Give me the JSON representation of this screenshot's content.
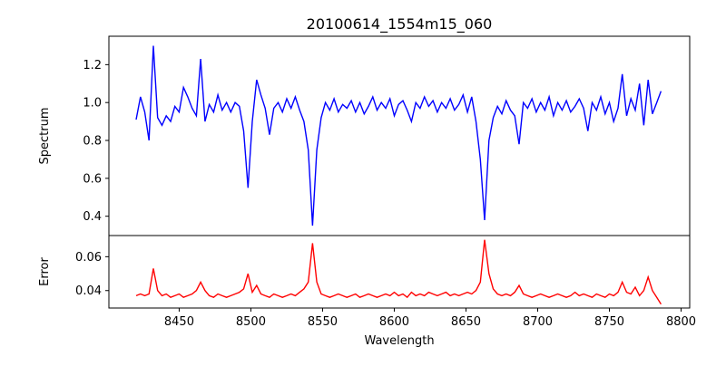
{
  "chart_data": [
    {
      "type": "line",
      "title": "20100614_1554m15_060",
      "xlabel": "",
      "ylabel": "Spectrum",
      "xlim": [
        8401,
        8806
      ],
      "ylim": [
        0.298,
        1.35
      ],
      "x_start": 8420,
      "x_step": 3,
      "color": "#0000ff",
      "yticks": [
        0.4,
        0.6,
        0.8,
        1.0,
        1.2
      ],
      "ytick_labels": [
        "0.4",
        "0.6",
        "0.8",
        "1.0",
        "1.2"
      ],
      "values": [
        0.91,
        1.03,
        0.95,
        0.8,
        1.3,
        0.92,
        0.88,
        0.93,
        0.9,
        0.98,
        0.95,
        1.08,
        1.03,
        0.97,
        0.93,
        1.23,
        0.9,
        0.99,
        0.95,
        1.04,
        0.96,
        1.0,
        0.95,
        1.0,
        0.98,
        0.85,
        0.55,
        0.9,
        1.12,
        1.04,
        0.97,
        0.83,
        0.97,
        1.0,
        0.95,
        1.02,
        0.97,
        1.03,
        0.96,
        0.9,
        0.75,
        0.35,
        0.75,
        0.92,
        1.0,
        0.96,
        1.02,
        0.95,
        0.99,
        0.97,
        1.01,
        0.95,
        1.0,
        0.94,
        0.98,
        1.03,
        0.96,
        1.0,
        0.97,
        1.02,
        0.93,
        0.99,
        1.01,
        0.96,
        0.9,
        1.0,
        0.97,
        1.03,
        0.98,
        1.01,
        0.95,
        1.0,
        0.97,
        1.02,
        0.96,
        0.99,
        1.04,
        0.95,
        1.03,
        0.9,
        0.7,
        0.38,
        0.8,
        0.92,
        0.98,
        0.94,
        1.01,
        0.96,
        0.93,
        0.78,
        1.0,
        0.97,
        1.02,
        0.95,
        1.0,
        0.96,
        1.03,
        0.93,
        1.0,
        0.96,
        1.01,
        0.95,
        0.98,
        1.02,
        0.97,
        0.85,
        1.0,
        0.96,
        1.03,
        0.94,
        1.0,
        0.9,
        0.97,
        1.15,
        0.93,
        1.02,
        0.96,
        1.1,
        0.88,
        1.12,
        0.94,
        1.0,
        1.06
      ]
    },
    {
      "type": "line",
      "title": "",
      "xlabel": "Wavelength",
      "ylabel": "Error",
      "xlim": [
        8401,
        8806
      ],
      "ylim": [
        0.0297,
        0.0725
      ],
      "x_start": 8420,
      "x_step": 3,
      "color": "#ff0000",
      "xticks": [
        8450,
        8500,
        8550,
        8600,
        8650,
        8700,
        8750,
        8800
      ],
      "xtick_labels": [
        "8450",
        "8500",
        "8550",
        "8600",
        "8650",
        "8700",
        "8750",
        "8800"
      ],
      "yticks": [
        0.04,
        0.06
      ],
      "ytick_labels": [
        "0.04",
        "0.06"
      ],
      "values": [
        0.037,
        0.038,
        0.037,
        0.038,
        0.053,
        0.04,
        0.037,
        0.038,
        0.036,
        0.037,
        0.038,
        0.036,
        0.037,
        0.038,
        0.04,
        0.045,
        0.04,
        0.037,
        0.036,
        0.038,
        0.037,
        0.036,
        0.037,
        0.038,
        0.039,
        0.041,
        0.05,
        0.039,
        0.043,
        0.038,
        0.037,
        0.036,
        0.038,
        0.037,
        0.036,
        0.037,
        0.038,
        0.037,
        0.039,
        0.041,
        0.045,
        0.068,
        0.045,
        0.038,
        0.037,
        0.036,
        0.037,
        0.038,
        0.037,
        0.036,
        0.037,
        0.038,
        0.036,
        0.037,
        0.038,
        0.037,
        0.036,
        0.037,
        0.038,
        0.037,
        0.039,
        0.037,
        0.038,
        0.036,
        0.039,
        0.037,
        0.038,
        0.037,
        0.039,
        0.038,
        0.037,
        0.038,
        0.039,
        0.037,
        0.038,
        0.037,
        0.038,
        0.039,
        0.038,
        0.04,
        0.045,
        0.07,
        0.05,
        0.041,
        0.038,
        0.037,
        0.038,
        0.037,
        0.039,
        0.043,
        0.038,
        0.037,
        0.036,
        0.037,
        0.038,
        0.037,
        0.036,
        0.037,
        0.038,
        0.037,
        0.036,
        0.037,
        0.039,
        0.037,
        0.038,
        0.037,
        0.036,
        0.038,
        0.037,
        0.036,
        0.038,
        0.037,
        0.039,
        0.045,
        0.039,
        0.038,
        0.042,
        0.037,
        0.04,
        0.048,
        0.04,
        0.036,
        0.032
      ]
    }
  ]
}
